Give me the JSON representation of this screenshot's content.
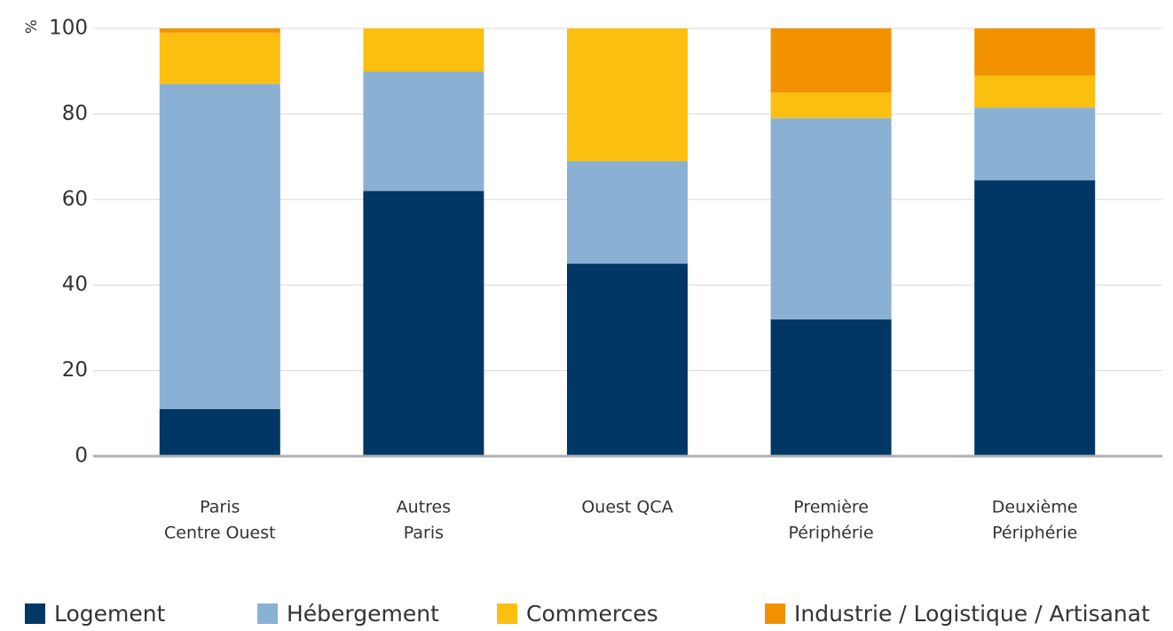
{
  "chart_data": {
    "type": "stacked_bar",
    "y_label": "%",
    "categories": [
      [
        "Paris",
        "Centre Ouest"
      ],
      [
        "Autres",
        "Paris"
      ],
      [
        "Ouest QCA"
      ],
      [
        "Première",
        "Périphérie"
      ],
      [
        "Deuxième",
        "Périphérie"
      ]
    ],
    "series": [
      {
        "name": "Logement",
        "color": "#003764",
        "values": [
          11,
          62,
          45,
          32,
          64.5
        ]
      },
      {
        "name": "Hébergement",
        "color": "#8ab1d4",
        "values": [
          76,
          28,
          24,
          47,
          17
        ]
      },
      {
        "name": "Commerces",
        "color": "#fbbf10",
        "values": [
          12,
          10,
          31,
          6,
          7.5
        ]
      },
      {
        "name": "Industrie / Logistique / Artisanat",
        "color": "#f39200",
        "values": [
          1,
          0,
          0,
          15,
          11
        ]
      }
    ],
    "ylim": [
      0,
      100
    ],
    "yticks": [
      0,
      20,
      40,
      60,
      80,
      100
    ],
    "grid": true,
    "legend": "bottom"
  }
}
